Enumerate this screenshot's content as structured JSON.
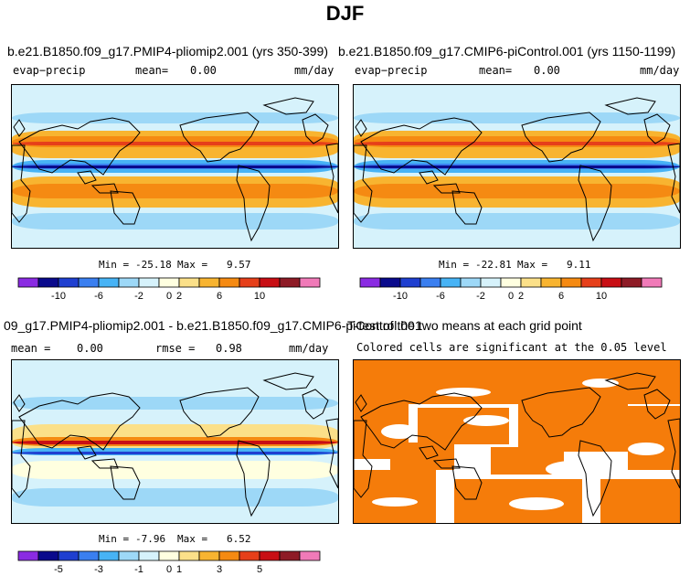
{
  "figure_title": "DJF",
  "colors": {
    "ramp": [
      "#8a2be2",
      "#0a0a8c",
      "#1f3fd0",
      "#3a7ff0",
      "#47b3f5",
      "#9dd8f7",
      "#d6f2fb",
      "#ffffe0",
      "#fbe089",
      "#f8b430",
      "#f58a12",
      "#e63f1a",
      "#c80e14",
      "#8e1b26",
      "#f07ab8"
    ],
    "significant": "#f57c0a",
    "land_outline": "#000000"
  },
  "panels": {
    "p1": {
      "title": "b.e21.B1850.f09_g17.PMIP4-pliomip2.001 (yrs 350-399)",
      "left_label": "evap−precip",
      "mean_label": "mean=",
      "mean_value": "0.00",
      "units": "mm/day",
      "min_label": "Min =",
      "min_value": "-25.18",
      "max_label": "Max =",
      "max_value": "9.57",
      "colorbar_ticks": [
        "-10",
        "-6",
        "-2",
        "0",
        "2",
        "6",
        "10"
      ]
    },
    "p2": {
      "title": "b.e21.B1850.f09_g17.CMIP6-piControl.001 (yrs 1150-1199)",
      "left_label": "evap−precip",
      "mean_label": "mean=",
      "mean_value": "0.00",
      "units": "mm/day",
      "min_label": "Min =",
      "min_value": "-22.81",
      "max_label": "Max =",
      "max_value": "9.11",
      "colorbar_ticks": [
        "-10",
        "-6",
        "-2",
        "0",
        "2",
        "6",
        "10"
      ]
    },
    "p3": {
      "title": "09_g17.PMIP4-pliomip2.001 - b.e21.B1850.f09_g17.CMIP6-piControl.001",
      "mean_label": "mean =",
      "mean_value": "0.00",
      "rmse_label": "rmse =",
      "rmse_value": "0.98",
      "units": "mm/day",
      "min_label": "Min =",
      "min_value": "-7.96",
      "max_label": "Max =",
      "max_value": "6.52",
      "colorbar_ticks": [
        "-5",
        "-3",
        "-1",
        "0",
        "1",
        "3",
        "5"
      ]
    },
    "p4": {
      "title": "T-test of the two means at each grid point",
      "subtitle": "Colored cells are significant at the 0.05 level"
    }
  },
  "chart_data": [
    {
      "type": "heatmap",
      "title": "b.e21.B1850.f09_g17.PMIP4-pliomip2.001 (yrs 350-399)",
      "variable": "evap−precip",
      "units": "mm/day",
      "mean": 0.0,
      "min": -25.18,
      "max": 9.57,
      "colorbar_levels": [
        -10,
        -6,
        -2,
        0,
        2,
        6,
        10
      ]
    },
    {
      "type": "heatmap",
      "title": "b.e21.B1850.f09_g17.CMIP6-piControl.001 (yrs 1150-1199)",
      "variable": "evap−precip",
      "units": "mm/day",
      "mean": 0.0,
      "min": -22.81,
      "max": 9.11,
      "colorbar_levels": [
        -10,
        -6,
        -2,
        0,
        2,
        6,
        10
      ]
    },
    {
      "type": "heatmap",
      "title": "09_g17.PMIP4-pliomip2.001 - b.e21.B1850.f09_g17.CMIP6-piControl.001",
      "units": "mm/day",
      "mean": 0.0,
      "rmse": 0.98,
      "min": -7.96,
      "max": 6.52,
      "colorbar_levels": [
        -5,
        -3,
        -1,
        0,
        1,
        3,
        5
      ]
    },
    {
      "type": "heatmap",
      "title": "T-test of the two means at each grid point",
      "subtitle": "Colored cells are significant at the 0.05 level",
      "significance_level": 0.05
    }
  ]
}
